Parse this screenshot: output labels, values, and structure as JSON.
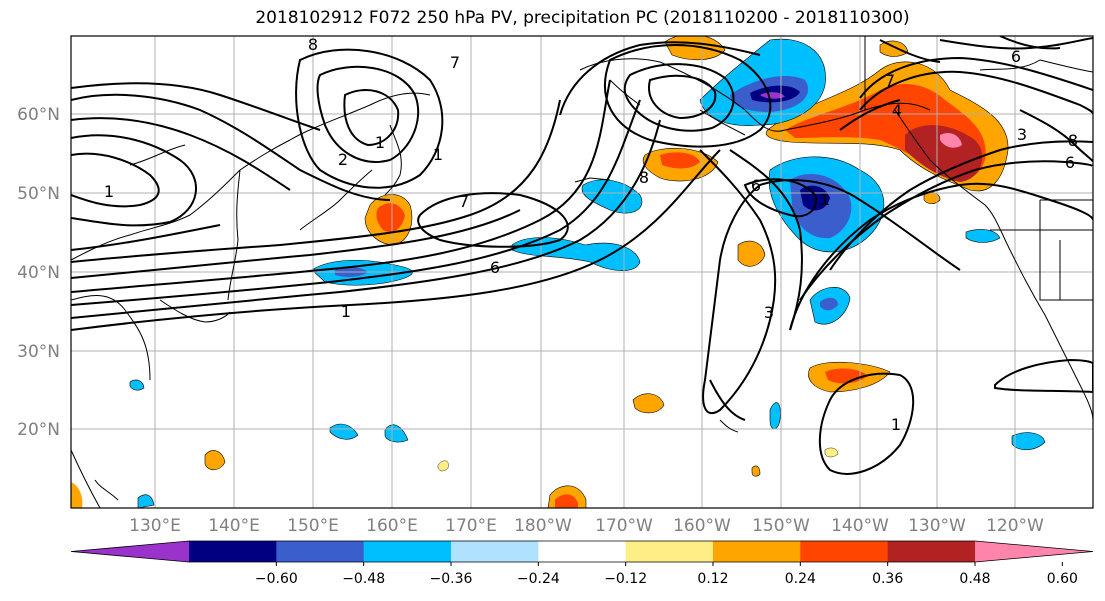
{
  "title": "2018102912 F072 250 hPa PV, precipitation PC (2018110200 - 2018110300)",
  "map": {
    "longitude_labels": [
      "130°E",
      "140°E",
      "150°E",
      "160°E",
      "170°E",
      "180°W",
      "170°W",
      "160°W",
      "150°W",
      "140°W",
      "130°W",
      "120°W"
    ],
    "latitude_labels": [
      "60°N",
      "50°N",
      "40°N",
      "30°N",
      "20°N"
    ],
    "pv_contour_labels": [
      "8",
      "7",
      "1",
      "2",
      "1",
      "1",
      "7",
      "6",
      "1",
      "6",
      "3",
      "8",
      "7",
      "4",
      "3",
      "6",
      "8",
      "6",
      "1",
      "1"
    ]
  },
  "colorbar": {
    "colors": [
      "#9933cc",
      "#000080",
      "#3a5fcd",
      "#00bfff",
      "#b0e2ff",
      "#ffffff",
      "#ffed85",
      "#ffa500",
      "#ff4500",
      "#b22222",
      "#ff85ad"
    ],
    "tick_labels": [
      "−0.60",
      "−0.48",
      "−0.36",
      "−0.24",
      "−0.12",
      "0.12",
      "0.24",
      "0.36",
      "0.48",
      "0.60"
    ]
  }
}
